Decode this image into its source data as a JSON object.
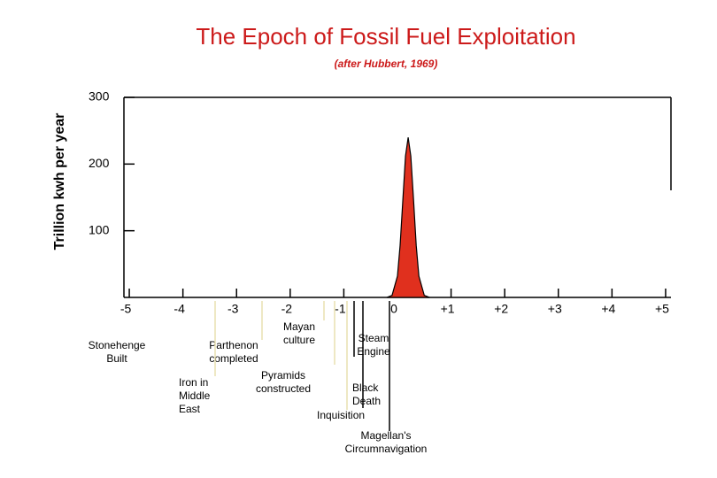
{
  "chart_data": {
    "type": "area",
    "title": "The Epoch of Fossil Fuel Exploitation",
    "subtitle": "(after Hubbert, 1969)",
    "y_label": "Trillion kwh per year",
    "color": "#e0301e",
    "x": [
      -0.2,
      -0.1,
      0,
      0.05,
      0.1,
      0.15,
      0.2,
      0.25,
      0.3,
      0.35,
      0.4,
      0.5,
      0.6
    ],
    "values": [
      0,
      3,
      32,
      78,
      146,
      212,
      240,
      212,
      146,
      78,
      32,
      3,
      0
    ],
    "xlim": [
      -5.1,
      5.1
    ],
    "xticks": [
      -5,
      -4,
      -3,
      -2,
      -1,
      0,
      {
        "value": 1,
        "label": "+1"
      },
      {
        "value": 2,
        "label": "+2"
      },
      {
        "value": 3,
        "label": "+3"
      },
      {
        "value": 4,
        "label": "+4"
      },
      {
        "value": 5,
        "label": "+5"
      }
    ],
    "ylim": [
      0,
      300
    ],
    "yticks": [
      100,
      200,
      300
    ],
    "annotations": [
      {
        "lines": [
          "Stonehenge",
          "Built"
        ]
      },
      {
        "lines": [
          "Parthenon",
          "completed"
        ]
      },
      {
        "lines": [
          "Iron in",
          "Middle",
          "East"
        ]
      },
      {
        "lines": [
          "Pyramids",
          "constructed"
        ]
      },
      {
        "lines": [
          "Mayan",
          "culture"
        ]
      },
      {
        "lines": [
          "Steam",
          "Engine"
        ]
      },
      {
        "lines": [
          "Black",
          "Death"
        ]
      },
      {
        "lines": [
          "Inquisition"
        ]
      },
      {
        "lines": [
          "Magellan's",
          "Circumnavigation"
        ]
      }
    ]
  }
}
